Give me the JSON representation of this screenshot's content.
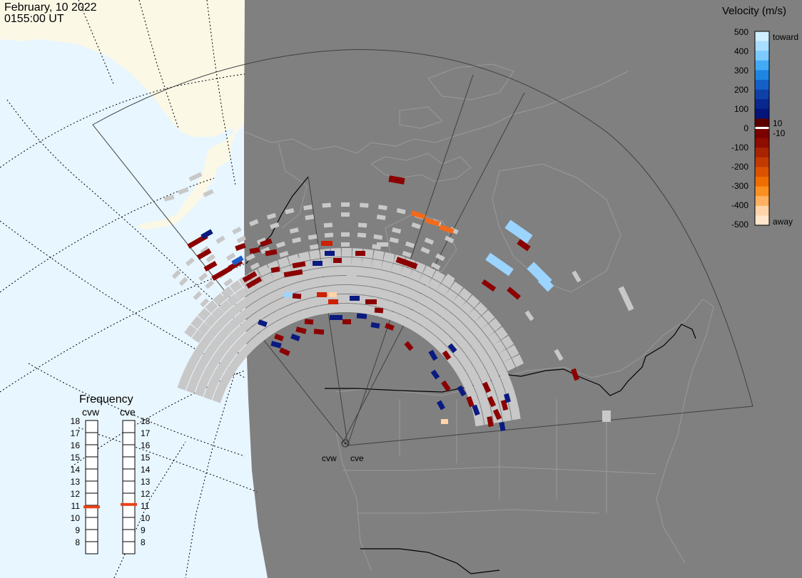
{
  "header": {
    "date": "February, 10 2022",
    "time": "0155:00 UT"
  },
  "colorbar": {
    "title": "Velocity (m/s)",
    "ticks": [
      "500",
      "400",
      "300",
      "200",
      "100",
      "0",
      "-100",
      "-200",
      "-300",
      "-400",
      "-500"
    ],
    "label_toward": "toward",
    "label_away": "away",
    "label_plus": "10",
    "label_minus": "-10",
    "colors": [
      "#cfeeff",
      "#a8deff",
      "#7ccaff",
      "#44aaf5",
      "#1e86e0",
      "#1560c8",
      "#0f40a8",
      "#082890",
      "#041478",
      "#5a0000",
      "#7a0000",
      "#8f0c00",
      "#a82400",
      "#c23a00",
      "#db5200",
      "#ef6e00",
      "#fb9020",
      "#ffb060",
      "#ffd4a8",
      "#ffe6cc"
    ]
  },
  "frequency": {
    "title": "Frequency",
    "radars": [
      "cvw",
      "cve"
    ],
    "levels": [
      "18",
      "17",
      "16",
      "15",
      "14",
      "13",
      "12",
      "11",
      "10",
      "9",
      "8"
    ],
    "values_mhz": [
      10.9,
      11.1
    ],
    "marker_color": "#e8421a"
  },
  "radars": {
    "labels": [
      "cvw",
      "cve"
    ]
  },
  "map": {
    "colors": {
      "ocean": "#e8f6ff",
      "land_day": "#fbf8e6",
      "night": "#808080",
      "gridline": "#000000",
      "ground_scatter": "#c8c8c8",
      "fov_outline": "#404040"
    }
  }
}
